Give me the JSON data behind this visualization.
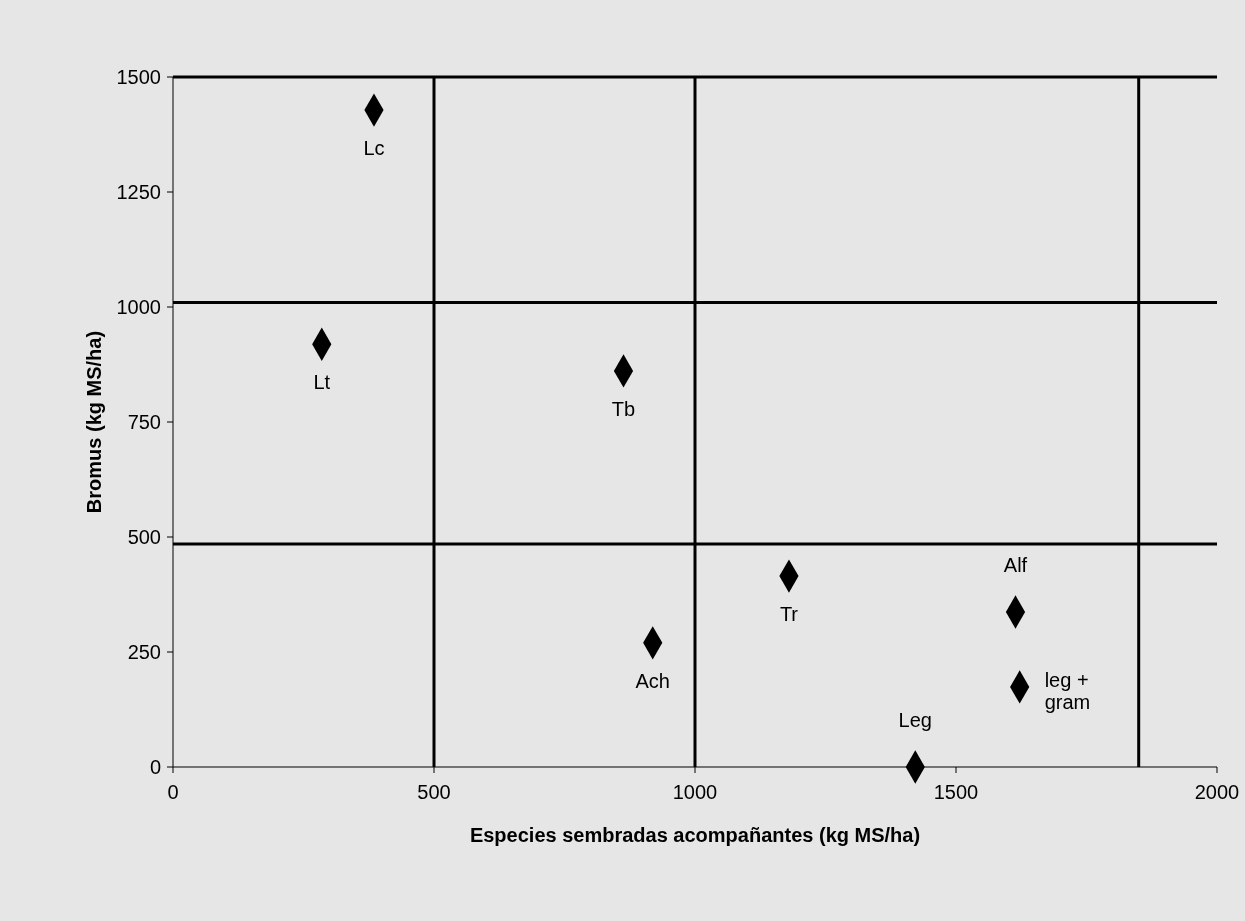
{
  "chart_data": {
    "type": "scatter",
    "xlabel": "Especies sembradas acompañantes (kg MS/ha)",
    "ylabel": "Bromus (kg MS/ha)",
    "x": [
      385,
      285,
      863,
      1180,
      919,
      1614,
      1622,
      1422
    ],
    "values": [
      1428,
      919,
      861,
      415,
      270,
      337,
      174,
      0
    ],
    "color": "#000000",
    "marker": "diamond",
    "xlim": [
      0,
      2000
    ],
    "xticks": [
      0,
      500,
      1000,
      1500,
      2000
    ],
    "ylim": [
      0,
      1500
    ],
    "yticks": [
      0,
      250,
      500,
      750,
      1000,
      1250,
      1500
    ],
    "grid": false,
    "ref_lines": [
      {
        "axis": "x",
        "value": 500,
        "color": "#000000"
      },
      {
        "axis": "x",
        "value": 1000,
        "color": "#000000"
      },
      {
        "axis": "x",
        "value": 1850,
        "color": "#000000"
      },
      {
        "axis": "y",
        "value": 1010,
        "color": "#000000"
      },
      {
        "axis": "y",
        "value": 485,
        "color": "#000000"
      }
    ],
    "annotations": [
      {
        "text": "Lc",
        "x": 385,
        "y": 1428
      },
      {
        "text": "Lt",
        "x": 285,
        "y": 919
      },
      {
        "text": "Tb",
        "x": 863,
        "y": 861
      },
      {
        "text": "Tr",
        "x": 1180,
        "y": 415
      },
      {
        "text": "Ach",
        "x": 919,
        "y": 270
      },
      {
        "text": "Alf",
        "x": 1614,
        "y": 337
      },
      {
        "text": "leg +\ngram",
        "x": 1622,
        "y": 174
      },
      {
        "text": "Leg",
        "x": 1422,
        "y": 0
      }
    ]
  }
}
